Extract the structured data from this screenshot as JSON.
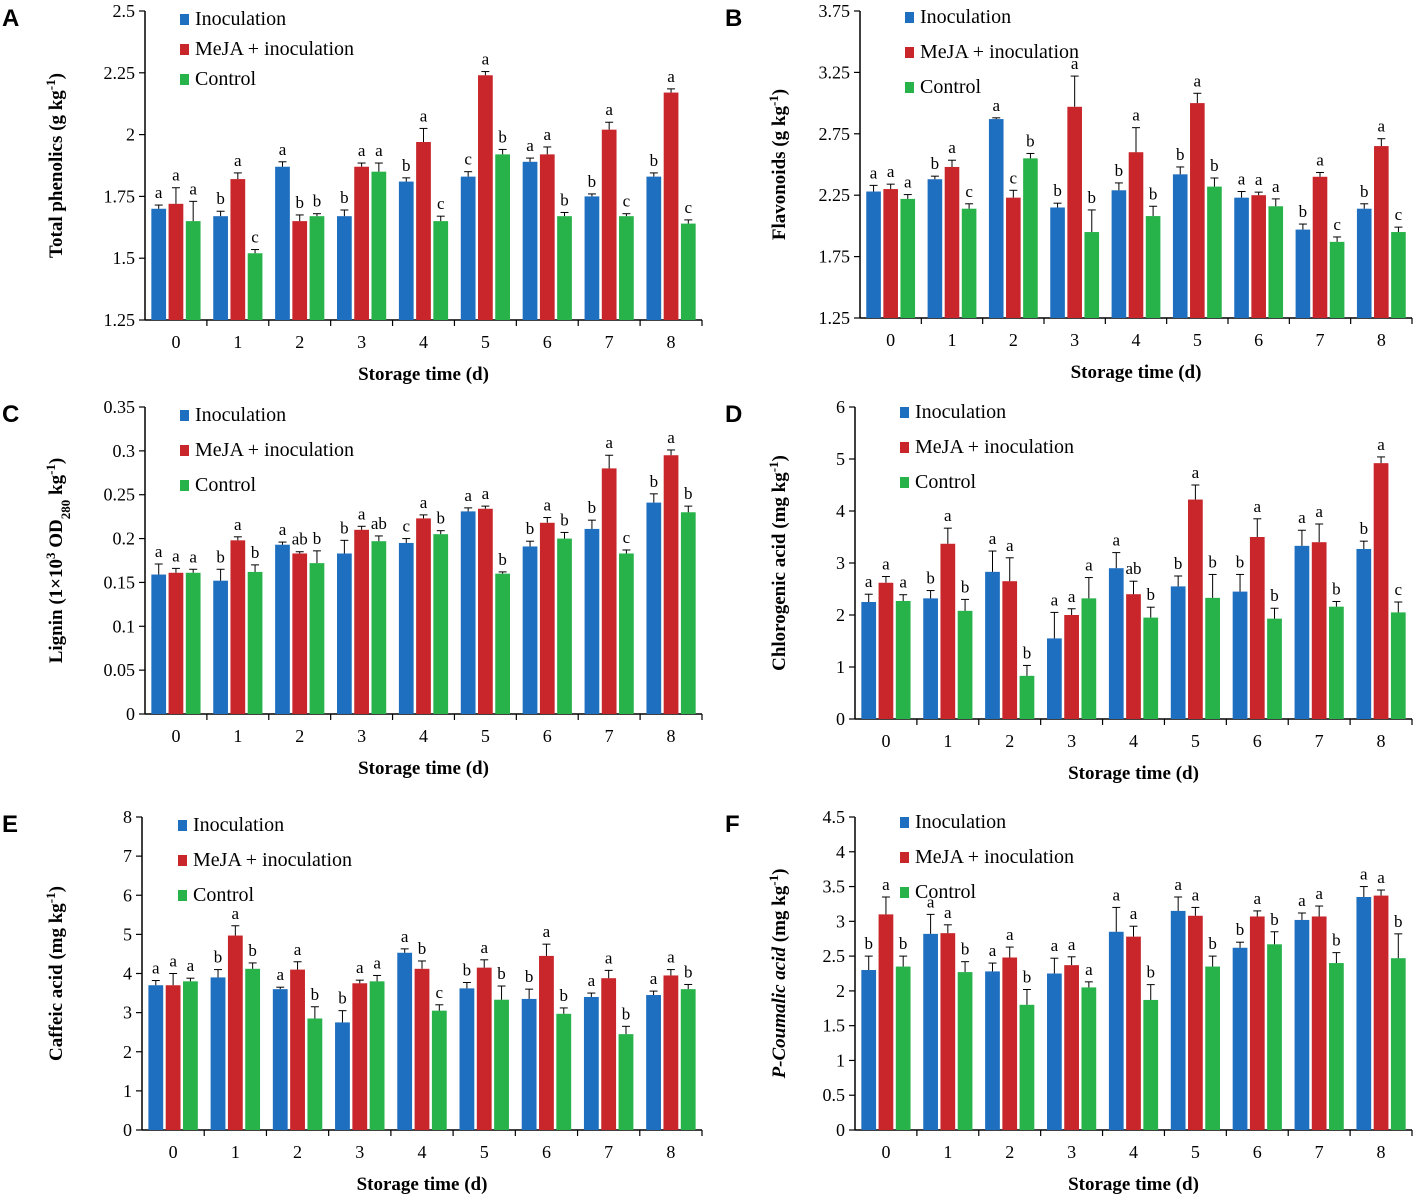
{
  "xlabel": "Storage time (d)",
  "categories": [
    "0",
    "1",
    "2",
    "3",
    "4",
    "5",
    "6",
    "7",
    "8"
  ],
  "legend": [
    "Inoculation",
    "MeJA + inoculation",
    "Control"
  ],
  "colors": {
    "inoculation": "#1f6fc0",
    "meja": "#c8262a",
    "control": "#27b24a",
    "axis": "#000000"
  },
  "chart_data": [
    {
      "type": "bar",
      "letter": "A",
      "ylabel_parts": [
        {
          "t": "Total phenolics (g kg"
        },
        {
          "t": "-1",
          "sup": true
        },
        {
          "t": ")"
        }
      ],
      "ylim": [
        1.25,
        2.5
      ],
      "yticks": [
        1.25,
        1.5,
        1.75,
        2,
        2.25,
        2.5
      ],
      "ytick_labels": [
        "1.25",
        "1.5",
        "1.75",
        "2",
        "2.25",
        "2.5"
      ],
      "series": [
        {
          "name": "Inoculation",
          "values": [
            1.7,
            1.67,
            1.87,
            1.67,
            1.81,
            1.83,
            1.89,
            1.75,
            1.83
          ],
          "errors": [
            0.015,
            0.02,
            0.02,
            0.025,
            0.015,
            0.02,
            0.015,
            0.01,
            0.015
          ],
          "sig": [
            "a",
            "b",
            "a",
            "b",
            "b",
            "c",
            "a",
            "b",
            "b"
          ]
        },
        {
          "name": "MeJA + inoculation",
          "values": [
            1.72,
            1.82,
            1.65,
            1.87,
            1.97,
            2.24,
            1.92,
            2.02,
            2.17
          ],
          "errors": [
            0.065,
            0.025,
            0.025,
            0.015,
            0.055,
            0.015,
            0.03,
            0.03,
            0.015
          ],
          "sig": [
            "a",
            "a",
            "b",
            "a",
            "a",
            "a",
            "a",
            "a",
            "a"
          ]
        },
        {
          "name": "Control",
          "values": [
            1.65,
            1.52,
            1.67,
            1.85,
            1.65,
            1.92,
            1.67,
            1.67,
            1.64
          ],
          "errors": [
            0.08,
            0.015,
            0.01,
            0.035,
            0.02,
            0.02,
            0.015,
            0.01,
            0.015
          ],
          "sig": [
            "a",
            "c",
            "b",
            "a",
            "c",
            "b",
            "b",
            "c",
            "c"
          ]
        }
      ]
    },
    {
      "type": "bar",
      "letter": "B",
      "ylabel_parts": [
        {
          "t": "Flavonoids (g kg"
        },
        {
          "t": "-1",
          "sup": true
        },
        {
          "t": ")"
        }
      ],
      "ylim": [
        1.25,
        3.75
      ],
      "yticks": [
        1.25,
        1.75,
        2.25,
        2.75,
        3.25,
        3.75
      ],
      "ytick_labels": [
        "1.25",
        "1.75",
        "2.25",
        "2.75",
        "3.25",
        "3.75"
      ],
      "series": [
        {
          "name": "Inoculation",
          "values": [
            2.28,
            2.38,
            2.87,
            2.15,
            2.29,
            2.42,
            2.23,
            1.97,
            2.14
          ],
          "errors": [
            0.05,
            0.025,
            0.01,
            0.035,
            0.06,
            0.06,
            0.05,
            0.045,
            0.04
          ],
          "sig": [
            "a",
            "b",
            "a",
            "b",
            "b",
            "b",
            "a",
            "b",
            "b"
          ]
        },
        {
          "name": "MeJA + inoculation",
          "values": [
            2.3,
            2.48,
            2.23,
            2.97,
            2.6,
            3.0,
            2.25,
            2.4,
            2.65
          ],
          "errors": [
            0.04,
            0.055,
            0.06,
            0.25,
            0.2,
            0.08,
            0.025,
            0.035,
            0.06
          ],
          "sig": [
            "a",
            "a",
            "c",
            "a",
            "a",
            "a",
            "a",
            "a",
            "a"
          ]
        },
        {
          "name": "Control",
          "values": [
            2.22,
            2.14,
            2.55,
            1.95,
            2.08,
            2.32,
            2.16,
            1.87,
            1.95
          ],
          "errors": [
            0.035,
            0.04,
            0.04,
            0.18,
            0.08,
            0.07,
            0.06,
            0.04,
            0.04
          ],
          "sig": [
            "a",
            "c",
            "b",
            "b",
            "b",
            "b",
            "a",
            "c",
            "c"
          ]
        }
      ]
    },
    {
      "type": "bar",
      "letter": "C",
      "ylabel_parts": [
        {
          "t": "Lignin (1×10"
        },
        {
          "t": "3",
          "sup": true
        },
        {
          "t": " OD"
        },
        {
          "t": "280",
          "sub": true
        },
        {
          "t": " kg"
        },
        {
          "t": "-1",
          "sup": true
        },
        {
          "t": ")"
        }
      ],
      "ylim": [
        0,
        0.35
      ],
      "yticks": [
        0,
        0.05,
        0.1,
        0.15,
        0.2,
        0.25,
        0.3,
        0.35
      ],
      "ytick_labels": [
        "0",
        "0.05",
        "0.1",
        "0.15",
        "0.2",
        "0.25",
        "0.3",
        "0.35"
      ],
      "series": [
        {
          "name": "Inoculation",
          "values": [
            0.159,
            0.152,
            0.193,
            0.183,
            0.195,
            0.231,
            0.191,
            0.211,
            0.241
          ],
          "errors": [
            0.012,
            0.013,
            0.003,
            0.015,
            0.005,
            0.004,
            0.006,
            0.01,
            0.01
          ],
          "sig": [
            "a",
            "b",
            "a",
            "b",
            "c",
            "a",
            "b",
            "b",
            "b"
          ]
        },
        {
          "name": "MeJA + inoculation",
          "values": [
            0.161,
            0.198,
            0.183,
            0.21,
            0.223,
            0.234,
            0.218,
            0.28,
            0.295
          ],
          "errors": [
            0.005,
            0.004,
            0.002,
            0.004,
            0.004,
            0.003,
            0.006,
            0.015,
            0.006
          ],
          "sig": [
            "a",
            "a",
            "ab",
            "a",
            "a",
            "a",
            "a",
            "a",
            "a"
          ]
        },
        {
          "name": "Control",
          "values": [
            0.161,
            0.162,
            0.172,
            0.197,
            0.205,
            0.16,
            0.2,
            0.183,
            0.23
          ],
          "errors": [
            0.004,
            0.008,
            0.014,
            0.006,
            0.004,
            0.002,
            0.007,
            0.004,
            0.007
          ],
          "sig": [
            "a",
            "b",
            "b",
            "ab",
            "b",
            "b",
            "b",
            "c",
            "b"
          ]
        }
      ]
    },
    {
      "type": "bar",
      "letter": "D",
      "ylabel_parts": [
        {
          "t": "Chlorogenic acid (mg kg"
        },
        {
          "t": "-1",
          "sup": true
        },
        {
          "t": ")"
        }
      ],
      "ylim": [
        0,
        6
      ],
      "yticks": [
        0,
        1,
        2,
        3,
        4,
        5,
        6
      ],
      "ytick_labels": [
        "0",
        "1",
        "2",
        "3",
        "4",
        "5",
        "6"
      ],
      "series": [
        {
          "name": "Inoculation",
          "values": [
            2.25,
            2.32,
            2.83,
            1.55,
            2.9,
            2.55,
            2.45,
            3.33,
            3.27
          ],
          "errors": [
            0.15,
            0.15,
            0.4,
            0.5,
            0.3,
            0.2,
            0.33,
            0.3,
            0.15
          ],
          "sig": [
            "a",
            "b",
            "a",
            "a",
            "a",
            "b",
            "b",
            "a",
            "b"
          ]
        },
        {
          "name": "MeJA + inoculation",
          "values": [
            2.62,
            3.37,
            2.65,
            2.0,
            2.4,
            4.22,
            3.5,
            3.4,
            4.92
          ],
          "errors": [
            0.12,
            0.3,
            0.45,
            0.12,
            0.25,
            0.28,
            0.35,
            0.35,
            0.12
          ],
          "sig": [
            "a",
            "a",
            "a",
            "a",
            "ab",
            "a",
            "a",
            "a",
            "a"
          ]
        },
        {
          "name": "Control",
          "values": [
            2.27,
            2.08,
            0.83,
            2.32,
            1.95,
            2.33,
            1.93,
            2.16,
            2.05
          ],
          "errors": [
            0.12,
            0.22,
            0.2,
            0.4,
            0.2,
            0.45,
            0.2,
            0.1,
            0.2
          ],
          "sig": [
            "a",
            "b",
            "b",
            "a",
            "b",
            "b",
            "b",
            "b",
            "c"
          ]
        }
      ]
    },
    {
      "type": "bar",
      "letter": "E",
      "ylabel_parts": [
        {
          "t": "Caffeic acid (mg kg"
        },
        {
          "t": "-1",
          "sup": true
        },
        {
          "t": ")"
        }
      ],
      "ylim": [
        0,
        8
      ],
      "yticks": [
        0,
        1,
        2,
        3,
        4,
        5,
        6,
        7,
        8
      ],
      "ytick_labels": [
        "0",
        "1",
        "2",
        "3",
        "4",
        "5",
        "6",
        "7",
        "8"
      ],
      "series": [
        {
          "name": "Inoculation",
          "values": [
            3.7,
            3.9,
            3.6,
            2.75,
            4.53,
            3.62,
            3.35,
            3.4,
            3.45
          ],
          "errors": [
            0.12,
            0.2,
            0.05,
            0.3,
            0.1,
            0.15,
            0.25,
            0.1,
            0.1
          ],
          "sig": [
            "a",
            "b",
            "a",
            "b",
            "a",
            "b",
            "b",
            "a",
            "a"
          ]
        },
        {
          "name": "MeJA + inoculation",
          "values": [
            3.7,
            4.97,
            4.1,
            3.75,
            4.12,
            4.15,
            4.45,
            3.88,
            3.95
          ],
          "errors": [
            0.3,
            0.25,
            0.2,
            0.08,
            0.2,
            0.2,
            0.3,
            0.2,
            0.15
          ],
          "sig": [
            "a",
            "a",
            "a",
            "a",
            "b",
            "a",
            "a",
            "a",
            "a"
          ]
        },
        {
          "name": "Control",
          "values": [
            3.8,
            4.12,
            2.85,
            3.8,
            3.05,
            3.33,
            2.97,
            2.45,
            3.6
          ],
          "errors": [
            0.08,
            0.15,
            0.3,
            0.15,
            0.15,
            0.35,
            0.15,
            0.2,
            0.12
          ],
          "sig": [
            "a",
            "b",
            "b",
            "a",
            "c",
            "b",
            "b",
            "b",
            "b"
          ]
        }
      ]
    },
    {
      "type": "bar",
      "letter": "F",
      "ylabel_parts": [
        {
          "t": "P",
          "italic": true
        },
        {
          "t": "-Coumalic acid",
          "italic": true
        },
        {
          "t": " (mg kg"
        },
        {
          "t": "-1",
          "sup": true
        },
        {
          "t": ")"
        }
      ],
      "ylim": [
        0,
        4.5
      ],
      "yticks": [
        0,
        0.5,
        1,
        1.5,
        2,
        2.5,
        3,
        3.5,
        4,
        4.5
      ],
      "ytick_labels": [
        "0",
        "0.5",
        "1",
        "1.5",
        "2",
        "2.5",
        "3",
        "3.5",
        "4",
        "4.5"
      ],
      "series": [
        {
          "name": "Inoculation",
          "values": [
            2.3,
            2.82,
            2.28,
            2.25,
            2.85,
            3.15,
            2.62,
            3.02,
            3.35
          ],
          "errors": [
            0.2,
            0.28,
            0.12,
            0.22,
            0.35,
            0.2,
            0.08,
            0.1,
            0.15
          ],
          "sig": [
            "b",
            "a",
            "a",
            "a",
            "a",
            "a",
            "b",
            "a",
            "a"
          ]
        },
        {
          "name": "MeJA + inoculation",
          "values": [
            3.1,
            2.83,
            2.48,
            2.37,
            2.78,
            3.08,
            3.07,
            3.07,
            3.37
          ],
          "errors": [
            0.25,
            0.12,
            0.15,
            0.12,
            0.15,
            0.12,
            0.08,
            0.15,
            0.08
          ],
          "sig": [
            "a",
            "a",
            "a",
            "a",
            "a",
            "a",
            "a",
            "a",
            "a"
          ]
        },
        {
          "name": "Control",
          "values": [
            2.35,
            2.27,
            1.8,
            2.05,
            1.87,
            2.35,
            2.67,
            2.4,
            2.47
          ],
          "errors": [
            0.15,
            0.15,
            0.22,
            0.08,
            0.22,
            0.15,
            0.18,
            0.15,
            0.35
          ],
          "sig": [
            "b",
            "b",
            "b",
            "a",
            "b",
            "b",
            "b",
            "b",
            "b"
          ]
        }
      ]
    }
  ]
}
